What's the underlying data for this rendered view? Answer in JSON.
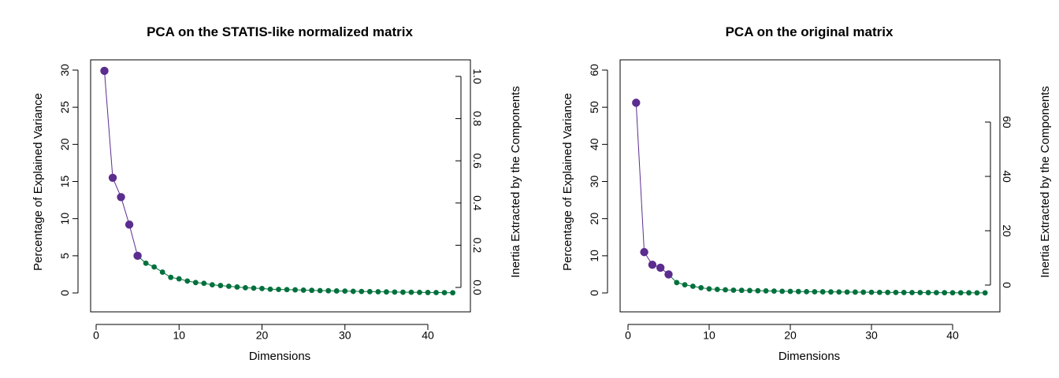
{
  "colors": {
    "highlight": "#5b2d8e",
    "rest": "#00703c",
    "axis": "#000000"
  },
  "chart_data": [
    {
      "type": "line",
      "title": "PCA on the STATIS-like normalized matrix",
      "xlabel": "Dimensions",
      "ylabel": "Percentage of Explained Variance",
      "y2label": "Inertia Extracted by the Components",
      "xlim": [
        0,
        43
      ],
      "ylim": [
        0,
        30
      ],
      "y2lim": [
        0,
        1
      ],
      "x_ticks": [
        0,
        10,
        20,
        30,
        40
      ],
      "y_ticks": [
        0,
        5,
        10,
        15,
        20,
        25,
        30
      ],
      "y2_ticks": [
        "0.0",
        "0.2",
        "0.4",
        "0.6",
        "0.8",
        "1.0"
      ],
      "highlight_count": 5,
      "x": [
        1,
        2,
        3,
        4,
        5,
        6,
        7,
        8,
        9,
        10,
        11,
        12,
        13,
        14,
        15,
        16,
        17,
        18,
        19,
        20,
        21,
        22,
        23,
        24,
        25,
        26,
        27,
        28,
        29,
        30,
        31,
        32,
        33,
        34,
        35,
        36,
        37,
        38,
        39,
        40,
        41,
        42,
        43
      ],
      "values": [
        29.9,
        15.5,
        12.9,
        9.2,
        5.0,
        4.0,
        3.5,
        2.8,
        2.1,
        1.9,
        1.6,
        1.4,
        1.3,
        1.1,
        1.0,
        0.9,
        0.8,
        0.7,
        0.65,
        0.6,
        0.5,
        0.48,
        0.45,
        0.42,
        0.38,
        0.35,
        0.32,
        0.3,
        0.27,
        0.25,
        0.22,
        0.2,
        0.18,
        0.16,
        0.14,
        0.12,
        0.1,
        0.09,
        0.08,
        0.06,
        0.05,
        0.04,
        0.03
      ]
    },
    {
      "type": "line",
      "title": "PCA on the original matrix",
      "xlabel": "Dimensions",
      "ylabel": "Percentage of Explained Variance",
      "y2label": "Inertia Extracted by the Components",
      "xlim": [
        0,
        44
      ],
      "ylim": [
        0,
        60
      ],
      "y2lim": [
        0,
        60
      ],
      "x_ticks": [
        0,
        10,
        20,
        30,
        40
      ],
      "y_ticks": [
        0,
        10,
        20,
        30,
        40,
        50,
        60
      ],
      "y2_ticks": [
        "0",
        "20",
        "40",
        "60"
      ],
      "highlight_count": 5,
      "x": [
        1,
        2,
        3,
        4,
        5,
        6,
        7,
        8,
        9,
        10,
        11,
        12,
        13,
        14,
        15,
        16,
        17,
        18,
        19,
        20,
        21,
        22,
        23,
        24,
        25,
        26,
        27,
        28,
        29,
        30,
        31,
        32,
        33,
        34,
        35,
        36,
        37,
        38,
        39,
        40,
        41,
        42,
        43,
        44
      ],
      "values": [
        51.2,
        11.0,
        7.6,
        6.8,
        5.0,
        2.8,
        2.2,
        1.8,
        1.4,
        1.1,
        0.95,
        0.85,
        0.75,
        0.7,
        0.65,
        0.6,
        0.55,
        0.5,
        0.45,
        0.42,
        0.38,
        0.35,
        0.32,
        0.3,
        0.28,
        0.26,
        0.24,
        0.22,
        0.2,
        0.18,
        0.16,
        0.15,
        0.14,
        0.12,
        0.11,
        0.1,
        0.09,
        0.08,
        0.07,
        0.06,
        0.05,
        0.04,
        0.03,
        0.02
      ]
    }
  ]
}
